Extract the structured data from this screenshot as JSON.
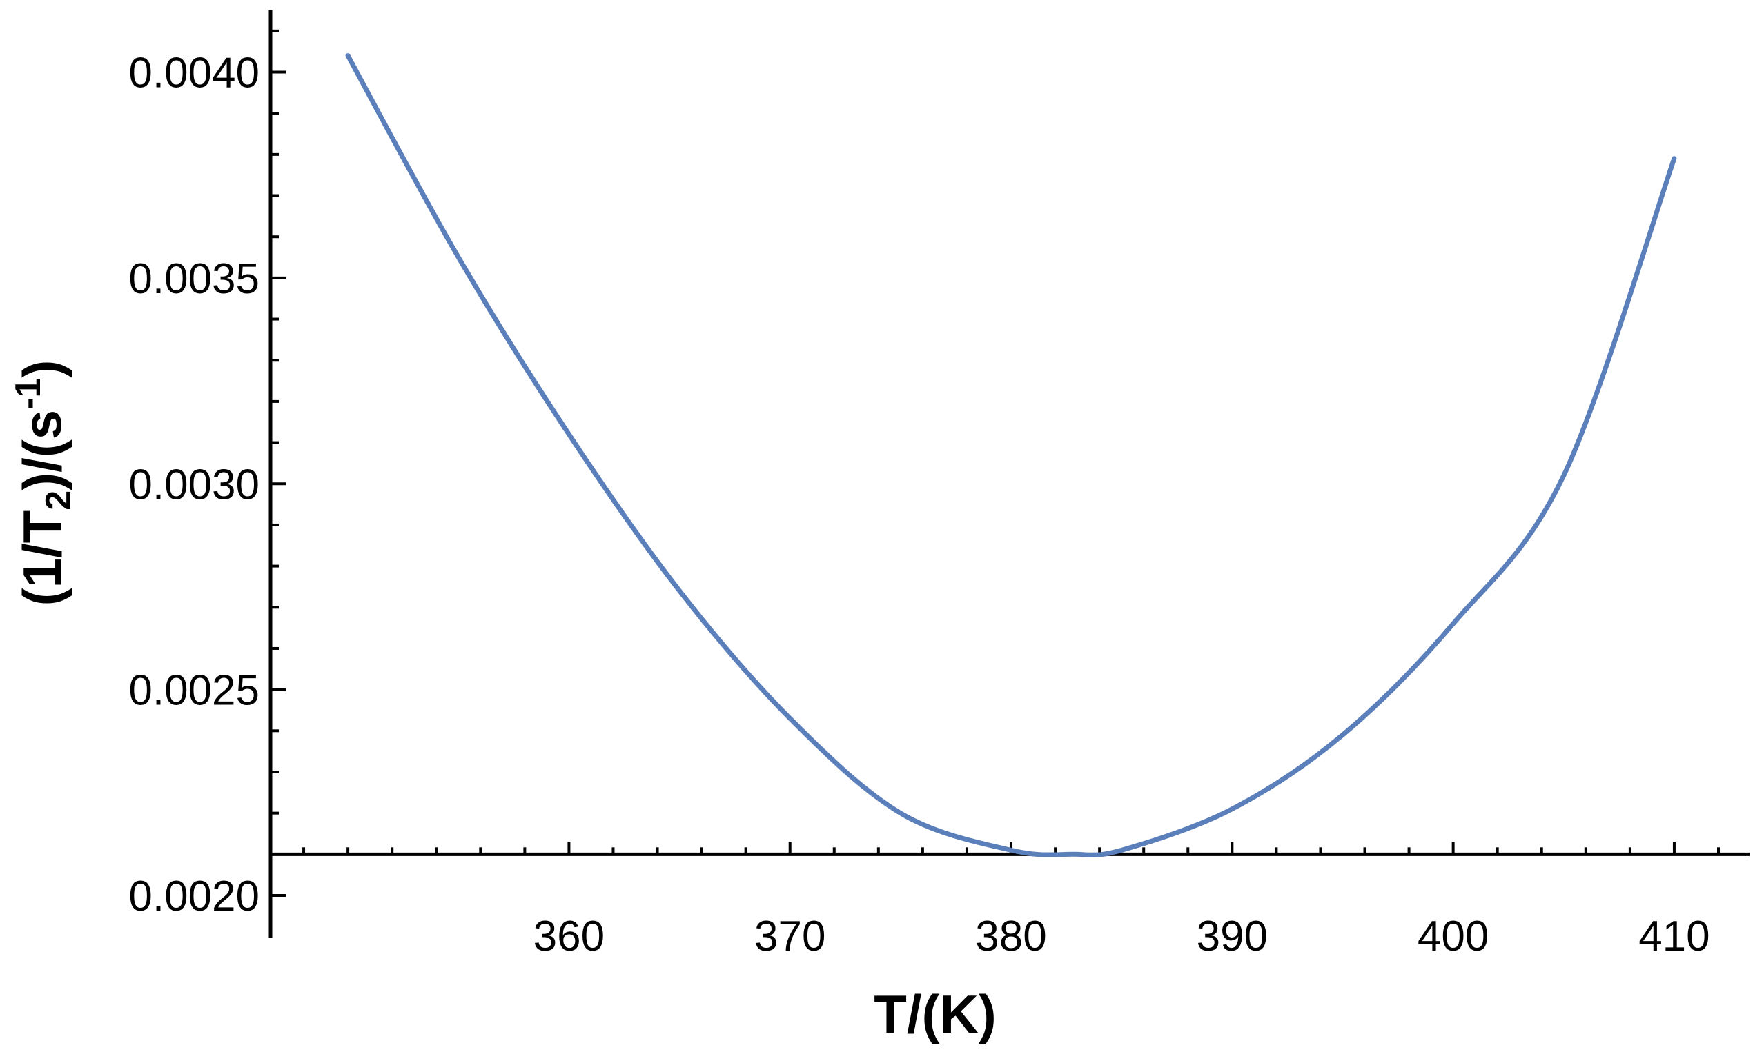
{
  "chart_data": {
    "type": "line",
    "xlabel": "T/(K)",
    "ylabel": {
      "prefix": "(1/T",
      "subscript": "2",
      "middle": ")/(s",
      "superscript": "-1",
      "suffix": ")"
    },
    "xlim": [
      346.5,
      412.0
    ],
    "ylim": [
      0.002,
      0.00415
    ],
    "x_ticks": [
      {
        "value": 360,
        "label": "360"
      },
      {
        "value": 370,
        "label": "370"
      },
      {
        "value": 380,
        "label": "380"
      },
      {
        "value": 390,
        "label": "390"
      },
      {
        "value": 400,
        "label": "400"
      },
      {
        "value": 410,
        "label": "410"
      }
    ],
    "y_ticks": [
      {
        "value": 0.002,
        "label": "0.0020"
      },
      {
        "value": 0.0025,
        "label": "0.0025"
      },
      {
        "value": 0.003,
        "label": "0.0030"
      },
      {
        "value": 0.0035,
        "label": "0.0035"
      },
      {
        "value": 0.004,
        "label": "0.0040"
      }
    ],
    "x_minor_step": 2,
    "y_minor_step": 0.0001,
    "grid": false,
    "x_axis_crosses_at_y": 0.0021,
    "series": [
      {
        "color": "#5b7fba",
        "x": [
          350,
          355,
          360,
          365,
          370,
          375,
          380,
          382.8,
          385,
          390,
          395,
          400,
          405,
          410
        ],
        "y": [
          0.00404,
          0.00355,
          0.00312,
          0.00274,
          0.00243,
          0.0022,
          0.00211,
          0.0021,
          0.00211,
          0.00221,
          0.00239,
          0.00266,
          0.00302,
          0.00379
        ]
      }
    ]
  }
}
